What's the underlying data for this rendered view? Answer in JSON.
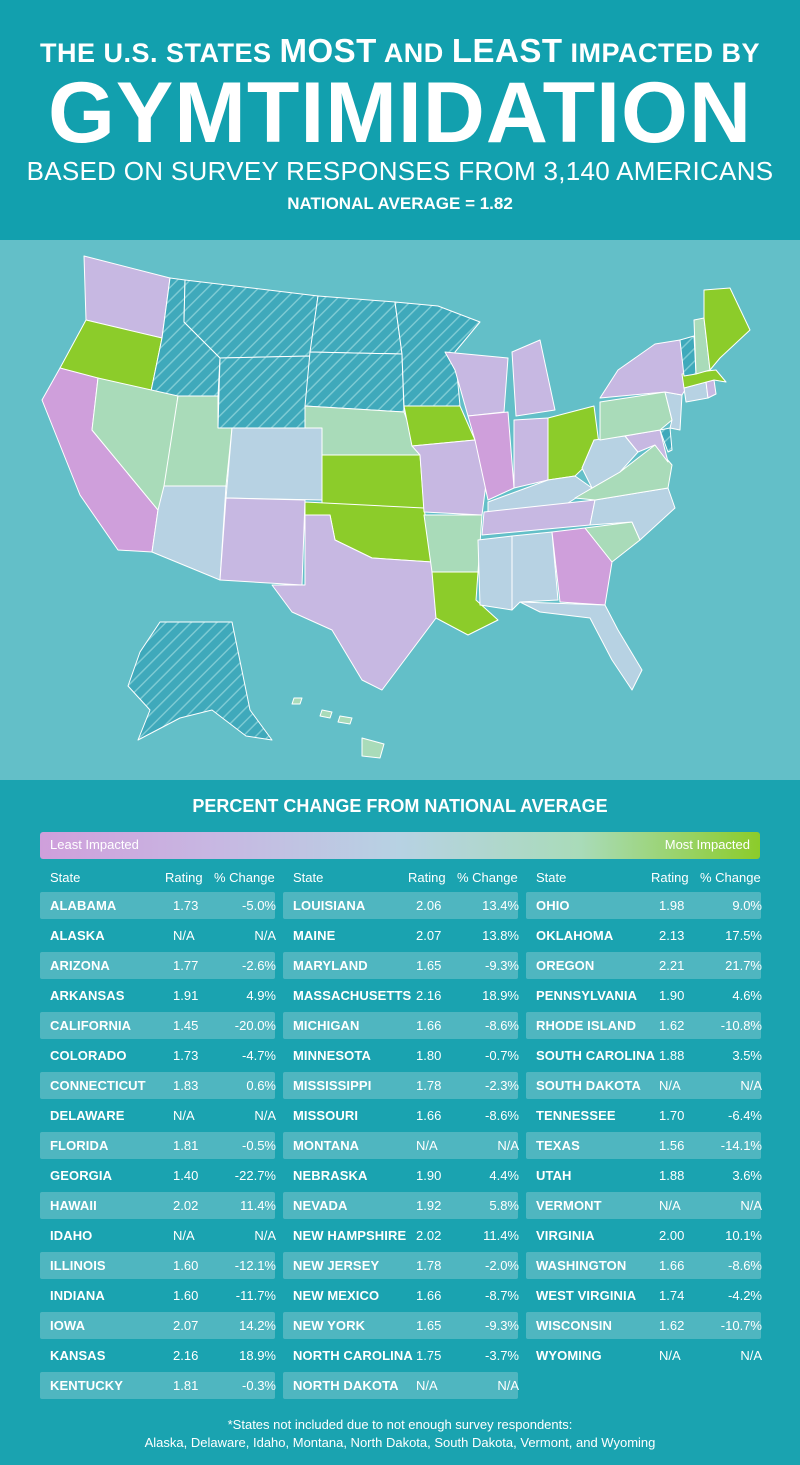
{
  "header": {
    "line1_pre": "THE U.S. STATES",
    "most": "MOST",
    "and": "AND",
    "least": "LEAST",
    "line1_post": "IMPACTED BY",
    "title": "GYMTIMIDATION",
    "subtitle": "BASED ON SURVEY RESPONSES FROM 3,140 AMERICANS",
    "national_average": "NATIONAL AVERAGE = 1.82"
  },
  "colors": {
    "least": "#cf9fdb",
    "low": "#c7b8e2",
    "mid": "#b7d2e3",
    "high": "#a9dbb9",
    "most": "#8ccc2a",
    "na": "#3fa9bb"
  },
  "table": {
    "title": "PERCENT CHANGE FROM NATIONAL AVERAGE",
    "legend_least": "Least Impacted",
    "legend_most": "Most Impacted",
    "headers": {
      "state": "State",
      "rating": "Rating",
      "change": "% Change"
    },
    "rows": [
      {
        "state": "ALABAMA",
        "rating": "1.73",
        "change": "-5.0%"
      },
      {
        "state": "ALASKA",
        "rating": "N/A",
        "change": "N/A"
      },
      {
        "state": "ARIZONA",
        "rating": "1.77",
        "change": "-2.6%"
      },
      {
        "state": "ARKANSAS",
        "rating": "1.91",
        "change": "4.9%"
      },
      {
        "state": "CALIFORNIA",
        "rating": "1.45",
        "change": "-20.0%"
      },
      {
        "state": "COLORADO",
        "rating": "1.73",
        "change": "-4.7%"
      },
      {
        "state": "CONNECTICUT",
        "rating": "1.83",
        "change": "0.6%"
      },
      {
        "state": "DELAWARE",
        "rating": "N/A",
        "change": "N/A"
      },
      {
        "state": "FLORIDA",
        "rating": "1.81",
        "change": "-0.5%"
      },
      {
        "state": "GEORGIA",
        "rating": "1.40",
        "change": "-22.7%"
      },
      {
        "state": "HAWAII",
        "rating": "2.02",
        "change": "11.4%"
      },
      {
        "state": "IDAHO",
        "rating": "N/A",
        "change": "N/A"
      },
      {
        "state": "ILLINOIS",
        "rating": "1.60",
        "change": "-12.1%"
      },
      {
        "state": "INDIANA",
        "rating": "1.60",
        "change": "-11.7%"
      },
      {
        "state": "IOWA",
        "rating": "2.07",
        "change": "14.2%"
      },
      {
        "state": "KANSAS",
        "rating": "2.16",
        "change": "18.9%"
      },
      {
        "state": "KENTUCKY",
        "rating": "1.81",
        "change": "-0.3%"
      },
      {
        "state": "LOUISIANA",
        "rating": "2.06",
        "change": "13.4%"
      },
      {
        "state": "MAINE",
        "rating": "2.07",
        "change": "13.8%"
      },
      {
        "state": "MARYLAND",
        "rating": "1.65",
        "change": "-9.3%"
      },
      {
        "state": "MASSACHUSETTS",
        "rating": "2.16",
        "change": "18.9%"
      },
      {
        "state": "MICHIGAN",
        "rating": "1.66",
        "change": "-8.6%"
      },
      {
        "state": "MINNESOTA",
        "rating": "1.80",
        "change": "-0.7%"
      },
      {
        "state": "MISSISSIPPI",
        "rating": "1.78",
        "change": "-2.3%"
      },
      {
        "state": "MISSOURI",
        "rating": "1.66",
        "change": "-8.6%"
      },
      {
        "state": "MONTANA",
        "rating": "N/A",
        "change": "N/A"
      },
      {
        "state": "NEBRASKA",
        "rating": "1.90",
        "change": "4.4%"
      },
      {
        "state": "NEVADA",
        "rating": "1.92",
        "change": "5.8%"
      },
      {
        "state": "NEW HAMPSHIRE",
        "rating": "2.02",
        "change": "11.4%"
      },
      {
        "state": "NEW JERSEY",
        "rating": "1.78",
        "change": "-2.0%"
      },
      {
        "state": "NEW MEXICO",
        "rating": "1.66",
        "change": "-8.7%"
      },
      {
        "state": "NEW YORK",
        "rating": "1.65",
        "change": "-9.3%"
      },
      {
        "state": "NORTH CAROLINA",
        "rating": "1.75",
        "change": "-3.7%"
      },
      {
        "state": "NORTH DAKOTA",
        "rating": "N/A",
        "change": "N/A"
      },
      {
        "state": "OHIO",
        "rating": "1.98",
        "change": "9.0%"
      },
      {
        "state": "OKLAHOMA",
        "rating": "2.13",
        "change": "17.5%"
      },
      {
        "state": "OREGON",
        "rating": "2.21",
        "change": "21.7%"
      },
      {
        "state": "PENNSYLVANIA",
        "rating": "1.90",
        "change": "4.6%"
      },
      {
        "state": "RHODE ISLAND",
        "rating": "1.62",
        "change": "-10.8%"
      },
      {
        "state": "SOUTH CAROLINA",
        "rating": "1.88",
        "change": "3.5%"
      },
      {
        "state": "SOUTH DAKOTA",
        "rating": "N/A",
        "change": "N/A"
      },
      {
        "state": "TENNESSEE",
        "rating": "1.70",
        "change": "-6.4%"
      },
      {
        "state": "TEXAS",
        "rating": "1.56",
        "change": "-14.1%"
      },
      {
        "state": "UTAH",
        "rating": "1.88",
        "change": "3.6%"
      },
      {
        "state": "VERMONT",
        "rating": "N/A",
        "change": "N/A"
      },
      {
        "state": "VIRGINIA",
        "rating": "2.00",
        "change": "10.1%"
      },
      {
        "state": "WASHINGTON",
        "rating": "1.66",
        "change": "-8.6%"
      },
      {
        "state": "WEST VIRGINIA",
        "rating": "1.74",
        "change": "-4.2%"
      },
      {
        "state": "WISCONSIN",
        "rating": "1.62",
        "change": "-10.7%"
      },
      {
        "state": "WYOMING",
        "rating": "N/A",
        "change": "N/A"
      }
    ]
  },
  "footnote": {
    "line1": "*States not included due to not enough survey respondents:",
    "line2": "Alaska, Delaware, Idaho, Montana, North Dakota, South Dakota, Vermont, and Wyoming"
  }
}
